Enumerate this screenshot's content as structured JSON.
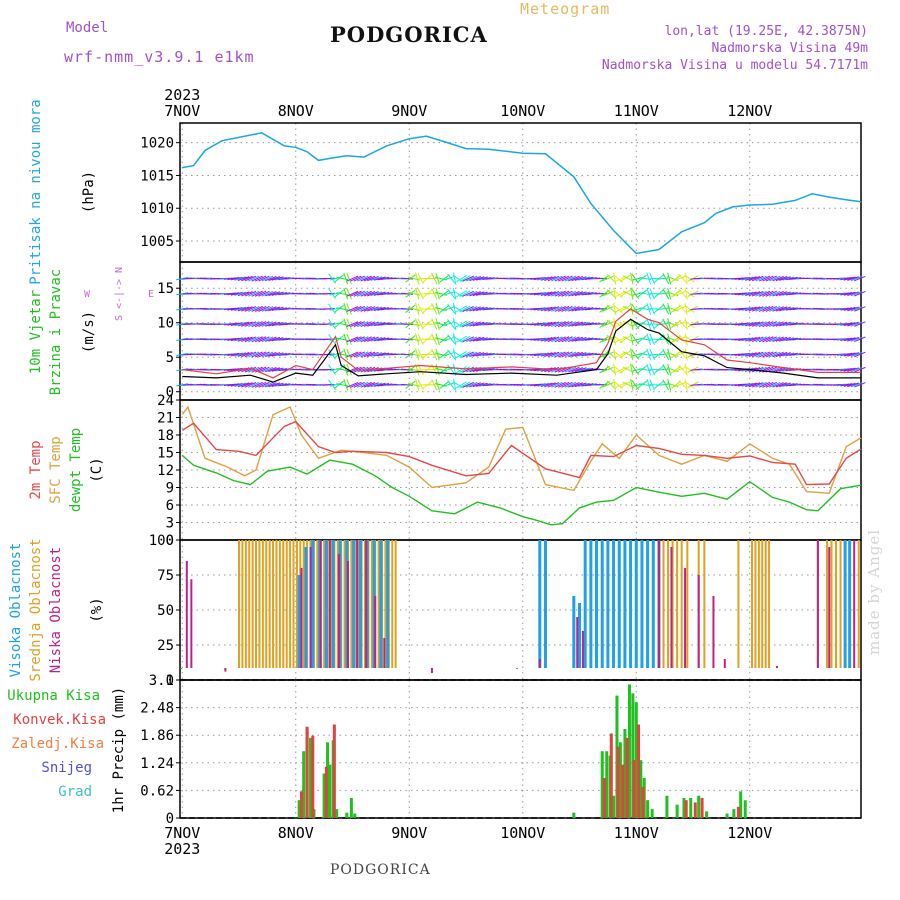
{
  "header": {
    "model_label": "Model",
    "model_name": "wrf-nmm_v3.9.1 e1km",
    "station": "PODGORICA",
    "product": "Meteogram",
    "lonlat": "lon,lat (19.25E, 42.3875N)",
    "altitude": "Nadmorska Visina 49m",
    "model_altitude": "Nadmorska Visina u modelu 54.7171m"
  },
  "footer": {
    "station": "PODGORICA",
    "watermark": "made by Angel"
  },
  "colors": {
    "pressure": "#1aa7e8",
    "wind_speed": "#000000",
    "wind_gust": "#e84040",
    "t2m": "#e84848",
    "sfc": "#e0a040",
    "dewpt": "#20c020",
    "high_cloud": "#20a0e8",
    "mid_cloud": "#e0a020",
    "low_cloud": "#c0208a",
    "precip_total": "#20c020",
    "precip_conv": "#e84040"
  },
  "chart_data": {
    "type": "line",
    "x_axis": {
      "year": "2023",
      "days": [
        "7NOV",
        "8NOV",
        "9NOV",
        "10NOV",
        "11NOV",
        "12NOV"
      ],
      "range_days": [
        -0.02,
        5.98
      ]
    },
    "panels": [
      {
        "id": "pressure",
        "type": "line",
        "ylabel": "Pritisak na nivou mora",
        "unit": "(hPa)",
        "yticks": [
          1005,
          1010,
          1015,
          1020
        ],
        "ylim": [
          1001.8,
          1023
        ],
        "series": [
          {
            "x": [
              0.0,
              0.1,
              0.2,
              0.35,
              0.5,
              0.7,
              0.9,
              1.0,
              1.1,
              1.2,
              1.3,
              1.45,
              1.6,
              1.8,
              2.0,
              2.15,
              2.3,
              2.5,
              2.7,
              3.0,
              3.2,
              3.45,
              3.6,
              3.8,
              4.0,
              4.2,
              4.4,
              4.6,
              4.7,
              4.85,
              5.0,
              5.2,
              5.4,
              5.55,
              5.7,
              5.85,
              5.98
            ],
            "y": [
              1016.2,
              1016.5,
              1018.8,
              1020.3,
              1020.8,
              1021.5,
              1019.5,
              1019.3,
              1018.6,
              1017.3,
              1017.6,
              1018.0,
              1017.8,
              1019.5,
              1020.6,
              1021.0,
              1020.2,
              1019.1,
              1019.0,
              1018.4,
              1018.3,
              1014.8,
              1010.7,
              1006.6,
              1003.1,
              1003.7,
              1006.4,
              1007.8,
              1009.2,
              1010.2,
              1010.5,
              1010.6,
              1011.2,
              1012.2,
              1011.7,
              1011.3,
              1011.0
            ]
          }
        ]
      },
      {
        "id": "wind",
        "type": "line",
        "ylabel": "10m Vjetar Brzina i Pravac",
        "unit": "(m/s)",
        "compass": {
          "n": "N",
          "s": "S",
          "e": "E",
          "w": "W",
          "arrow_w": "<",
          "arrow_e": ">",
          "bar": "-|-"
        },
        "yticks": [
          0,
          5,
          10,
          15
        ],
        "ylim": [
          -1.2,
          18.8
        ],
        "series": [
          {
            "name": "speed",
            "x": [
              0.0,
              0.3,
              0.6,
              0.8,
              1.0,
              1.15,
              1.35,
              1.4,
              1.55,
              1.8,
              2.1,
              2.5,
              2.9,
              3.3,
              3.65,
              3.75,
              3.82,
              3.95,
              4.1,
              4.2,
              4.4,
              4.6,
              4.8,
              5.0,
              5.3,
              5.6,
              5.98
            ],
            "y": [
              2.2,
              2.0,
              2.4,
              1.4,
              2.7,
              2.4,
              6.8,
              3.8,
              2.3,
              2.6,
              2.9,
              2.5,
              2.7,
              2.4,
              3.2,
              5.5,
              8.8,
              10.5,
              9.0,
              8.5,
              5.8,
              5.2,
              3.5,
              3.2,
              2.7,
              2.0,
              2.0
            ]
          },
          {
            "name": "gust",
            "x": [
              0.0,
              0.3,
              0.6,
              0.8,
              1.0,
              1.15,
              1.35,
              1.4,
              1.55,
              1.8,
              2.1,
              2.5,
              2.9,
              3.3,
              3.65,
              3.75,
              3.82,
              3.95,
              4.1,
              4.2,
              4.4,
              4.6,
              4.8,
              5.0,
              5.3,
              5.6,
              5.98
            ],
            "y": [
              3.2,
              2.6,
              3.4,
              2.0,
              3.8,
              3.2,
              8.0,
              5.0,
              3.1,
              3.4,
              3.8,
              3.3,
              3.6,
              3.2,
              4.2,
              7.0,
              10.2,
              12.0,
              10.5,
              10.0,
              7.5,
              6.8,
              4.6,
              4.2,
              3.5,
              2.8,
              2.8
            ]
          }
        ]
      },
      {
        "id": "temperature",
        "type": "line",
        "ylabel": [
          "2m Temp",
          "SFC Temp",
          "dewpt Temp"
        ],
        "unit": "(C)",
        "yticks": [
          0,
          3,
          6,
          9,
          12,
          15,
          18,
          21,
          24
        ],
        "ylim": [
          0,
          24
        ],
        "series": [
          {
            "name": "2m Temp",
            "x": [
              0.0,
              0.1,
              0.3,
              0.5,
              0.65,
              0.9,
              1.0,
              1.2,
              1.35,
              1.5,
              1.8,
              2.0,
              2.2,
              2.5,
              2.7,
              2.9,
              3.2,
              3.5,
              3.6,
              3.8,
              4.0,
              4.2,
              4.4,
              4.6,
              4.8,
              5.0,
              5.2,
              5.4,
              5.5,
              5.7,
              5.85,
              5.98
            ],
            "y": [
              18.8,
              20.0,
              15.5,
              15.2,
              14.5,
              19.5,
              20.3,
              16.0,
              15.0,
              15.2,
              15.0,
              14.3,
              12.8,
              11.0,
              11.4,
              16.2,
              12.2,
              10.7,
              14.5,
              14.3,
              16.2,
              15.7,
              14.7,
              14.5,
              14.0,
              14.4,
              13.3,
              13.0,
              9.5,
              9.6,
              14.0,
              15.6
            ]
          },
          {
            "name": "SFC Temp",
            "x": [
              0.0,
              0.05,
              0.2,
              0.4,
              0.55,
              0.65,
              0.8,
              0.95,
              1.05,
              1.2,
              1.4,
              1.6,
              1.8,
              2.0,
              2.2,
              2.5,
              2.7,
              2.85,
              3.0,
              3.2,
              3.45,
              3.6,
              3.7,
              3.85,
              4.0,
              4.2,
              4.4,
              4.6,
              4.8,
              5.0,
              5.2,
              5.35,
              5.5,
              5.7,
              5.85,
              5.98
            ],
            "y": [
              21.5,
              22.8,
              14.0,
              12.5,
              11.0,
              12.0,
              21.5,
              22.8,
              18.0,
              14.0,
              15.4,
              15.0,
              14.5,
              12.5,
              9.0,
              9.8,
              12.5,
              19.0,
              19.3,
              9.5,
              8.5,
              13.5,
              16.5,
              14.0,
              18.0,
              14.5,
              13.0,
              14.5,
              13.5,
              16.5,
              14.0,
              13.0,
              8.3,
              8.0,
              16.0,
              17.5
            ]
          },
          {
            "name": "dewpt Temp",
            "x": [
              0.0,
              0.1,
              0.3,
              0.45,
              0.6,
              0.75,
              0.95,
              1.1,
              1.3,
              1.5,
              1.7,
              1.85,
              2.0,
              2.2,
              2.4,
              2.6,
              2.8,
              3.0,
              3.1,
              3.25,
              3.35,
              3.5,
              3.65,
              3.8,
              4.0,
              4.2,
              4.4,
              4.6,
              4.8,
              5.0,
              5.2,
              5.35,
              5.5,
              5.6,
              5.8,
              5.98
            ],
            "y": [
              14.5,
              12.8,
              11.5,
              10.2,
              9.5,
              11.8,
              12.5,
              11.3,
              13.7,
              13.0,
              11.0,
              9.0,
              7.5,
              5.0,
              4.5,
              6.5,
              5.5,
              4.0,
              3.5,
              2.6,
              2.8,
              5.5,
              6.5,
              6.8,
              9.0,
              8.2,
              7.5,
              8.0,
              7.0,
              10.0,
              7.3,
              6.5,
              5.2,
              5.0,
              8.8,
              9.4
            ]
          }
        ]
      },
      {
        "id": "clouds",
        "type": "bar",
        "ylabel": [
          "Visoka Oblacnost",
          "Srednja Oblacnost",
          "Niska Oblacnost"
        ],
        "unit": "(%)",
        "yticks": [
          0,
          25,
          50,
          75,
          100
        ],
        "ylim": [
          0,
          100
        ],
        "series": [
          {
            "name": "Srednja Oblacnost",
            "x": [
              0.5,
              0.53,
              0.56,
              0.59,
              0.62,
              0.65,
              0.68,
              0.71,
              0.74,
              0.77,
              0.8,
              0.83,
              0.86,
              0.89,
              0.92,
              0.95,
              0.98,
              1.01,
              1.04,
              1.07,
              1.1,
              1.13,
              1.16,
              1.19,
              1.22,
              1.25,
              1.28,
              1.31,
              1.34,
              1.37,
              1.4,
              1.43,
              1.46,
              1.49,
              1.52,
              1.55,
              1.58,
              1.61,
              1.64,
              1.67,
              1.7,
              1.73,
              1.76,
              1.79,
              1.82,
              1.85,
              1.88,
              4.24,
              4.28,
              4.32,
              4.36,
              4.4,
              4.45,
              4.55,
              4.6,
              4.9,
              5.02,
              5.05,
              5.08,
              5.11,
              5.14,
              5.17,
              5.6,
              5.68,
              5.72,
              5.76,
              5.8,
              5.96
            ],
            "values": [
              100,
              100,
              100,
              100,
              100,
              100,
              100,
              100,
              100,
              100,
              100,
              100,
              100,
              100,
              100,
              100,
              100,
              100,
              100,
              100,
              100,
              100,
              100,
              100,
              100,
              100,
              100,
              100,
              100,
              100,
              100,
              100,
              100,
              100,
              100,
              100,
              100,
              100,
              100,
              100,
              100,
              100,
              100,
              100,
              100,
              100,
              100,
              100,
              100,
              100,
              100,
              100,
              100,
              100,
              100,
              100,
              100,
              100,
              100,
              100,
              100,
              100,
              100,
              100,
              100,
              100,
              100,
              100
            ]
          },
          {
            "name": "Visoka Oblacnost",
            "x": [
              1.03,
              1.09,
              1.15,
              1.21,
              1.27,
              1.33,
              1.39,
              1.45,
              1.51,
              1.57,
              1.63,
              1.69,
              1.75,
              1.81,
              3.15,
              3.2,
              3.45,
              3.5,
              3.55,
              3.6,
              3.65,
              3.7,
              3.75,
              3.8,
              3.85,
              3.9,
              3.95,
              4.0,
              4.05,
              4.1,
              4.15,
              4.2,
              5.84,
              5.88
            ],
            "values": [
              75,
              95,
              100,
              100,
              100,
              100,
              100,
              100,
              100,
              100,
              100,
              100,
              100,
              100,
              100,
              100,
              60,
              55,
              100,
              100,
              100,
              100,
              100,
              100,
              100,
              100,
              100,
              100,
              100,
              100,
              100,
              100,
              100,
              100
            ]
          },
          {
            "name": "Niska Oblacnost",
            "x": [
              -0.01,
              0.04,
              0.08,
              0.38,
              1.05,
              1.13,
              1.22,
              1.3,
              1.38,
              1.46,
              1.54,
              1.62,
              1.7,
              1.78,
              2.2,
              2.95,
              3.15,
              3.48,
              3.53,
              4.2,
              4.31,
              4.43,
              4.55,
              4.68,
              4.78,
              5.24,
              5.6,
              5.7,
              5.92
            ],
            "values": [
              8,
              85,
              72,
              6,
              80,
              95,
              100,
              100,
              90,
              85,
              100,
              100,
              60,
              30,
              5,
              8,
              15,
              45,
              35,
              100,
              95,
              80,
              75,
              60,
              15,
              10,
              100,
              95,
              100
            ]
          }
        ]
      },
      {
        "id": "precip",
        "type": "bar",
        "ylabel": "1hr Precip",
        "unit": "(mm)",
        "legend": [
          "Ukupna Kisa",
          "Konvek.Kisa",
          "Zaledj.Kisa",
          "Snijeg",
          "Grad"
        ],
        "yticks": [
          0,
          0.62,
          1.24,
          1.86,
          2.48,
          3.1
        ],
        "ylim": [
          0,
          3.1
        ],
        "series": [
          {
            "name": "Ukupna Kisa",
            "x": [
              1.03,
              1.07,
              1.1,
              1.13,
              1.16,
              1.25,
              1.28,
              1.3,
              1.33,
              1.36,
              1.45,
              1.49,
              1.52,
              3.45,
              3.7,
              3.74,
              3.77,
              3.8,
              3.83,
              3.86,
              3.9,
              3.94,
              3.97,
              4.0,
              4.04,
              4.07,
              4.1,
              4.14,
              4.27,
              4.36,
              4.42,
              4.48,
              4.55,
              4.62,
              4.8,
              4.86,
              4.92,
              4.96
            ],
            "values": [
              0.4,
              1.5,
              2.0,
              1.8,
              0.2,
              1.0,
              1.7,
              1.2,
              1.75,
              0.2,
              0.12,
              0.45,
              0.1,
              0.12,
              1.5,
              1.5,
              1.4,
              0.5,
              2.75,
              1.7,
              2.0,
              3.0,
              2.8,
              2.6,
              1.3,
              0.9,
              0.4,
              0.2,
              0.5,
              0.3,
              0.45,
              0.45,
              0.5,
              0.15,
              0.1,
              0.2,
              0.6,
              0.4
            ]
          },
          {
            "name": "Konvek.Kisa",
            "x": [
              1.05,
              1.1,
              1.15,
              1.27,
              1.34,
              3.72,
              3.78,
              3.84,
              3.88,
              3.92,
              3.98,
              4.02,
              4.06,
              4.44,
              4.52,
              4.58,
              4.9
            ],
            "values": [
              0.6,
              2.05,
              1.85,
              1.15,
              2.1,
              0.9,
              1.9,
              1.6,
              1.2,
              1.8,
              1.3,
              2.1,
              0.7,
              0.4,
              0.35,
              0.45,
              0.25
            ]
          }
        ]
      }
    ]
  }
}
